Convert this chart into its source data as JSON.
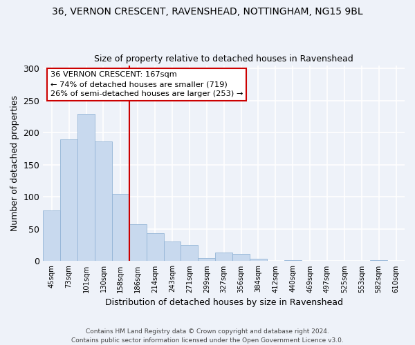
{
  "title_line1": "36, VERNON CRESCENT, RAVENSHEAD, NOTTINGHAM, NG15 9BL",
  "title_line2": "Size of property relative to detached houses in Ravenshead",
  "xlabel": "Distribution of detached houses by size in Ravenshead",
  "ylabel": "Number of detached properties",
  "bin_labels": [
    "45sqm",
    "73sqm",
    "101sqm",
    "130sqm",
    "158sqm",
    "186sqm",
    "214sqm",
    "243sqm",
    "271sqm",
    "299sqm",
    "327sqm",
    "356sqm",
    "384sqm",
    "412sqm",
    "440sqm",
    "469sqm",
    "497sqm",
    "525sqm",
    "553sqm",
    "582sqm",
    "610sqm"
  ],
  "bar_values": [
    79,
    190,
    229,
    186,
    105,
    57,
    43,
    31,
    25,
    5,
    13,
    11,
    4,
    0,
    1,
    0,
    0,
    0,
    0,
    2,
    0
  ],
  "bar_color": "#c8d9ee",
  "bar_edge_color": "#93b4d6",
  "vline_x_bar_idx": 4,
  "vline_color": "#cc0000",
  "annotation_line1": "36 VERNON CRESCENT: 167sqm",
  "annotation_line2": "← 74% of detached houses are smaller (719)",
  "annotation_line3": "26% of semi-detached houses are larger (253) →",
  "annotation_box_color": "#ffffff",
  "annotation_box_edge": "#cc0000",
  "ylim": [
    0,
    305
  ],
  "yticks": [
    0,
    50,
    100,
    150,
    200,
    250,
    300
  ],
  "footer": "Contains HM Land Registry data © Crown copyright and database right 2024.\nContains public sector information licensed under the Open Government Licence v3.0.",
  "bg_color": "#eef2f9"
}
